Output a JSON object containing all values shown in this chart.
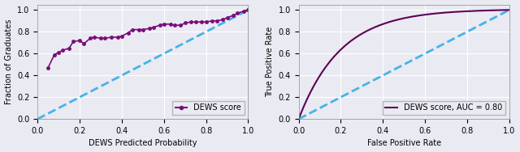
{
  "left_plot": {
    "xlabel": "DEWS Predicted Probability",
    "ylabel": "Fraction of Graduates",
    "xlim": [
      0.0,
      1.0
    ],
    "ylim": [
      0.0,
      1.05
    ],
    "xticks": [
      0.0,
      0.2,
      0.4,
      0.6,
      0.8,
      1.0
    ],
    "yticks": [
      0.0,
      0.2,
      0.4,
      0.6,
      0.8,
      1.0
    ],
    "curve_x": [
      0.05,
      0.08,
      0.1,
      0.12,
      0.15,
      0.17,
      0.2,
      0.22,
      0.25,
      0.27,
      0.3,
      0.32,
      0.35,
      0.38,
      0.4,
      0.43,
      0.45,
      0.48,
      0.5,
      0.53,
      0.55,
      0.58,
      0.6,
      0.63,
      0.65,
      0.68,
      0.7,
      0.73,
      0.75,
      0.78,
      0.8,
      0.83,
      0.85,
      0.88,
      0.9,
      0.93,
      0.95,
      0.98,
      1.0
    ],
    "curve_y": [
      0.47,
      0.59,
      0.61,
      0.63,
      0.65,
      0.71,
      0.72,
      0.69,
      0.74,
      0.75,
      0.74,
      0.74,
      0.75,
      0.75,
      0.76,
      0.79,
      0.82,
      0.82,
      0.82,
      0.83,
      0.84,
      0.86,
      0.87,
      0.87,
      0.86,
      0.86,
      0.88,
      0.89,
      0.89,
      0.89,
      0.89,
      0.9,
      0.9,
      0.91,
      0.93,
      0.95,
      0.97,
      0.99,
      1.0
    ],
    "curve_color": "#7B0D7A",
    "diagonal_color": "#45B3E8",
    "legend_label": "DEWS score",
    "marker": "o",
    "markersize": 2.5,
    "linewidth": 1.2
  },
  "right_plot": {
    "xlabel": "False Positive Rate",
    "ylabel": "True Positive Rate",
    "xlim": [
      0.0,
      1.0
    ],
    "ylim": [
      0.0,
      1.05
    ],
    "xticks": [
      0.0,
      0.2,
      0.4,
      0.6,
      0.8,
      1.0
    ],
    "yticks": [
      0.0,
      0.2,
      0.4,
      0.6,
      0.8,
      1.0
    ],
    "curve_color": "#5C0057",
    "diagonal_color": "#45B3E8",
    "legend_label": "DEWS score, AUC = 0.80",
    "linewidth": 1.5
  },
  "figure": {
    "bg_color": "#EAEAF2",
    "fontsize": 7,
    "dpi": 100,
    "figsize": [
      6.4,
      1.88
    ]
  }
}
